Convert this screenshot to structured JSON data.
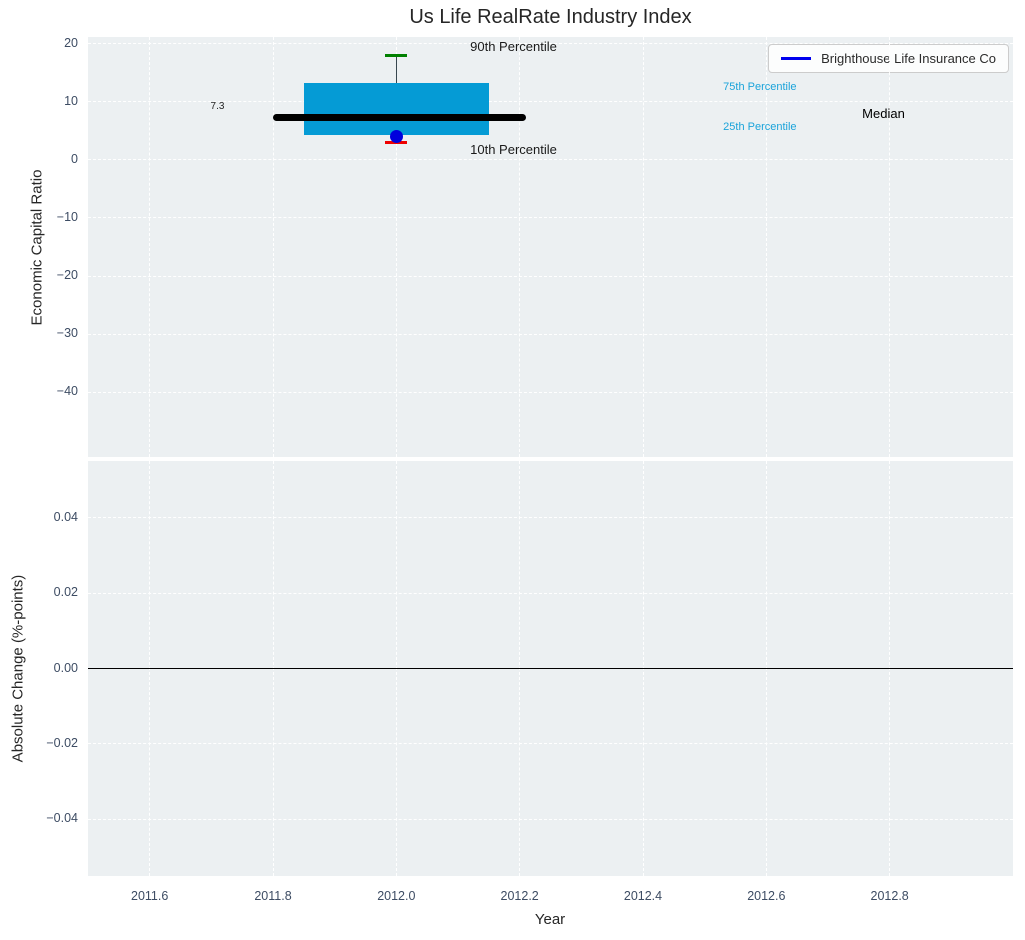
{
  "title": "Us Life RealRate Industry Index",
  "legend": {
    "label": "Brighthouse Life Insurance Co",
    "line_color": "#0000ee"
  },
  "colors": {
    "axes_background": "#ecf0f2",
    "grid": "#ffffff",
    "tick_text": "#3d4c63",
    "box_fill": "#059bd5",
    "median_line": "#000000",
    "whisker": "#37474f",
    "cap_top": "#008000",
    "cap_bottom": "#ee0000",
    "company_dot": "#0000dd",
    "percentile_text": "#1aa3da",
    "zero_line": "#000000"
  },
  "chart_data": [
    {
      "type": "boxplot",
      "panel": "top",
      "ylabel": "Economic Capital Ratio",
      "xlim": [
        2011.5,
        2013.0
      ],
      "ylim": [
        -51.2,
        21.2
      ],
      "yticks": [
        20,
        10,
        0,
        -10,
        -20,
        -30,
        -40
      ],
      "ytick_labels": [
        "20",
        "10",
        "0",
        "−10",
        "−20",
        "−30",
        "−40"
      ],
      "xticks": [
        2011.6,
        2011.8,
        2012.0,
        2012.2,
        2012.4,
        2012.6,
        2012.8
      ],
      "grid": true,
      "box": {
        "x_center": 2012.0,
        "box_x_range": [
          2011.85,
          2012.15
        ],
        "median_x_range": [
          2011.8,
          2012.21
        ],
        "p90": 18.0,
        "p75": 13.3,
        "median": 7.3,
        "p25": 4.3,
        "p10": 3.1
      },
      "company_point": {
        "name": "Brighthouse Life Insurance Co",
        "x": 2012.0,
        "y": 4.1
      },
      "annotations": [
        {
          "text": "90th Percentile",
          "x": 2012.19,
          "y": 19.5,
          "color": "#1a1a1a",
          "size": 13,
          "anchor": "middle"
        },
        {
          "text": "10th Percentile",
          "x": 2012.19,
          "y": 1.7,
          "color": "#1a1a1a",
          "size": 13,
          "anchor": "middle"
        },
        {
          "text": "Median",
          "x": 2012.79,
          "y": 7.9,
          "color": "#000000",
          "size": 13,
          "anchor": "middle"
        },
        {
          "text": "75th Percentile",
          "x": 2012.53,
          "y": 12.4,
          "color": "#1aa3da",
          "size": 11,
          "anchor": "start"
        },
        {
          "text": "25th Percentile",
          "x": 2012.53,
          "y": 5.6,
          "color": "#1aa3da",
          "size": 11,
          "anchor": "start"
        },
        {
          "text": "7.3",
          "x": 2011.71,
          "y": 9.1,
          "color": "#262626",
          "size": 10,
          "anchor": "middle"
        }
      ]
    },
    {
      "type": "line",
      "panel": "bottom",
      "ylabel": "Absolute Change (%-points)",
      "xlabel": "Year",
      "xlim": [
        2011.5,
        2013.0
      ],
      "ylim": [
        -0.055,
        0.055
      ],
      "yticks": [
        0.04,
        0.02,
        0,
        -0.02,
        -0.04
      ],
      "ytick_labels": [
        "0.04",
        "0.02",
        "0.00",
        "−0.02",
        "−0.04"
      ],
      "xticks": [
        2011.6,
        2011.8,
        2012.0,
        2012.2,
        2012.4,
        2012.6,
        2012.8
      ],
      "xtick_labels": [
        "2011.6",
        "2011.8",
        "2012.0",
        "2012.2",
        "2012.4",
        "2012.6",
        "2012.8"
      ],
      "grid": true,
      "zero_line": 0,
      "series": []
    }
  ]
}
